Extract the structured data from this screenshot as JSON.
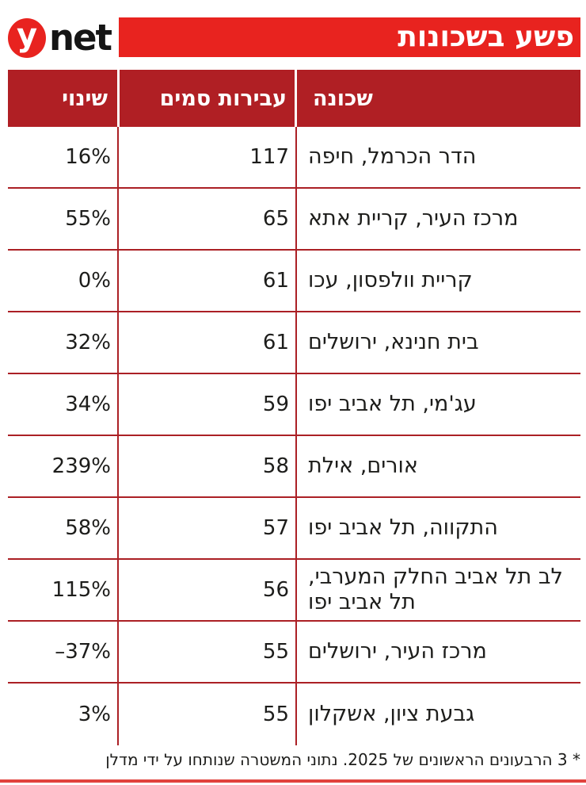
{
  "brand": {
    "logo_y": "y",
    "logo_net": "net"
  },
  "banner": {
    "title": "פשע בשכונות"
  },
  "table": {
    "headers": {
      "neighborhood": "שכונה",
      "offenses": "עבירות סמים",
      "change": "שינוי"
    },
    "rows": [
      {
        "neighborhood": "הדר הכרמל, חיפה",
        "offenses": "117",
        "change": "16%"
      },
      {
        "neighborhood": "מרכז העיר, קריית אתא",
        "offenses": "65",
        "change": "55%"
      },
      {
        "neighborhood": "קריית וולפסון, עכו",
        "offenses": "61",
        "change": "0%"
      },
      {
        "neighborhood": "בית חנינא, ירושלים",
        "offenses": "61",
        "change": "32%"
      },
      {
        "neighborhood": "עג'מי, תל אביב יפו",
        "offenses": "59",
        "change": "34%"
      },
      {
        "neighborhood": "אורים, אילת",
        "offenses": "58",
        "change": "239%"
      },
      {
        "neighborhood": "התקווה, תל אביב יפו",
        "offenses": "57",
        "change": "58%"
      },
      {
        "neighborhood": "לב תל אביב החלק המערבי, תל אביב יפו",
        "offenses": "56",
        "change": "115%"
      },
      {
        "neighborhood": "מרכז העיר, ירושלים",
        "offenses": "55",
        "change": "–37%"
      },
      {
        "neighborhood": "גבעת ציון, אשקלון",
        "offenses": "55",
        "change": "3%"
      }
    ]
  },
  "footnote": "* 3 הרבעונים הראשונים של 2025. נתוני המשטרה שנותחו על ידי מדלן",
  "colors": {
    "banner-red": "#e8231f",
    "header-red": "#b01f24",
    "line-red": "#ab2025",
    "bottom-red": "#e1423d",
    "ink": "#1d1d1b"
  },
  "chart_data": {
    "type": "table",
    "title": "פשע בשכונות",
    "columns": [
      "שכונה",
      "עבירות סמים",
      "שינוי"
    ],
    "change_format": "percent",
    "rows": [
      {
        "neighborhood": "הדר הכרמל, חיפה",
        "drug_offenses": 117,
        "change_pct": 16
      },
      {
        "neighborhood": "מרכז העיר, קריית אתא",
        "drug_offenses": 65,
        "change_pct": 55
      },
      {
        "neighborhood": "קריית וולפסון, עכו",
        "drug_offenses": 61,
        "change_pct": 0
      },
      {
        "neighborhood": "בית חנינא, ירושלים",
        "drug_offenses": 61,
        "change_pct": 32
      },
      {
        "neighborhood": "עג'מי, תל אביב יפו",
        "drug_offenses": 59,
        "change_pct": 34
      },
      {
        "neighborhood": "אורים, אילת",
        "drug_offenses": 58,
        "change_pct": 239
      },
      {
        "neighborhood": "התקווה, תל אביב יפו",
        "drug_offenses": 57,
        "change_pct": 58
      },
      {
        "neighborhood": "לב תל אביב החלק המערבי, תל אביב יפו",
        "drug_offenses": 56,
        "change_pct": 115
      },
      {
        "neighborhood": "מרכז העיר, ירושלים",
        "drug_offenses": 55,
        "change_pct": -37
      },
      {
        "neighborhood": "גבעת ציון, אשקלון",
        "drug_offenses": 55,
        "change_pct": 3
      }
    ],
    "footnote": "* 3 הרבעונים הראשונים של 2025. נתוני המשטרה שנותחו על ידי מדלן"
  }
}
